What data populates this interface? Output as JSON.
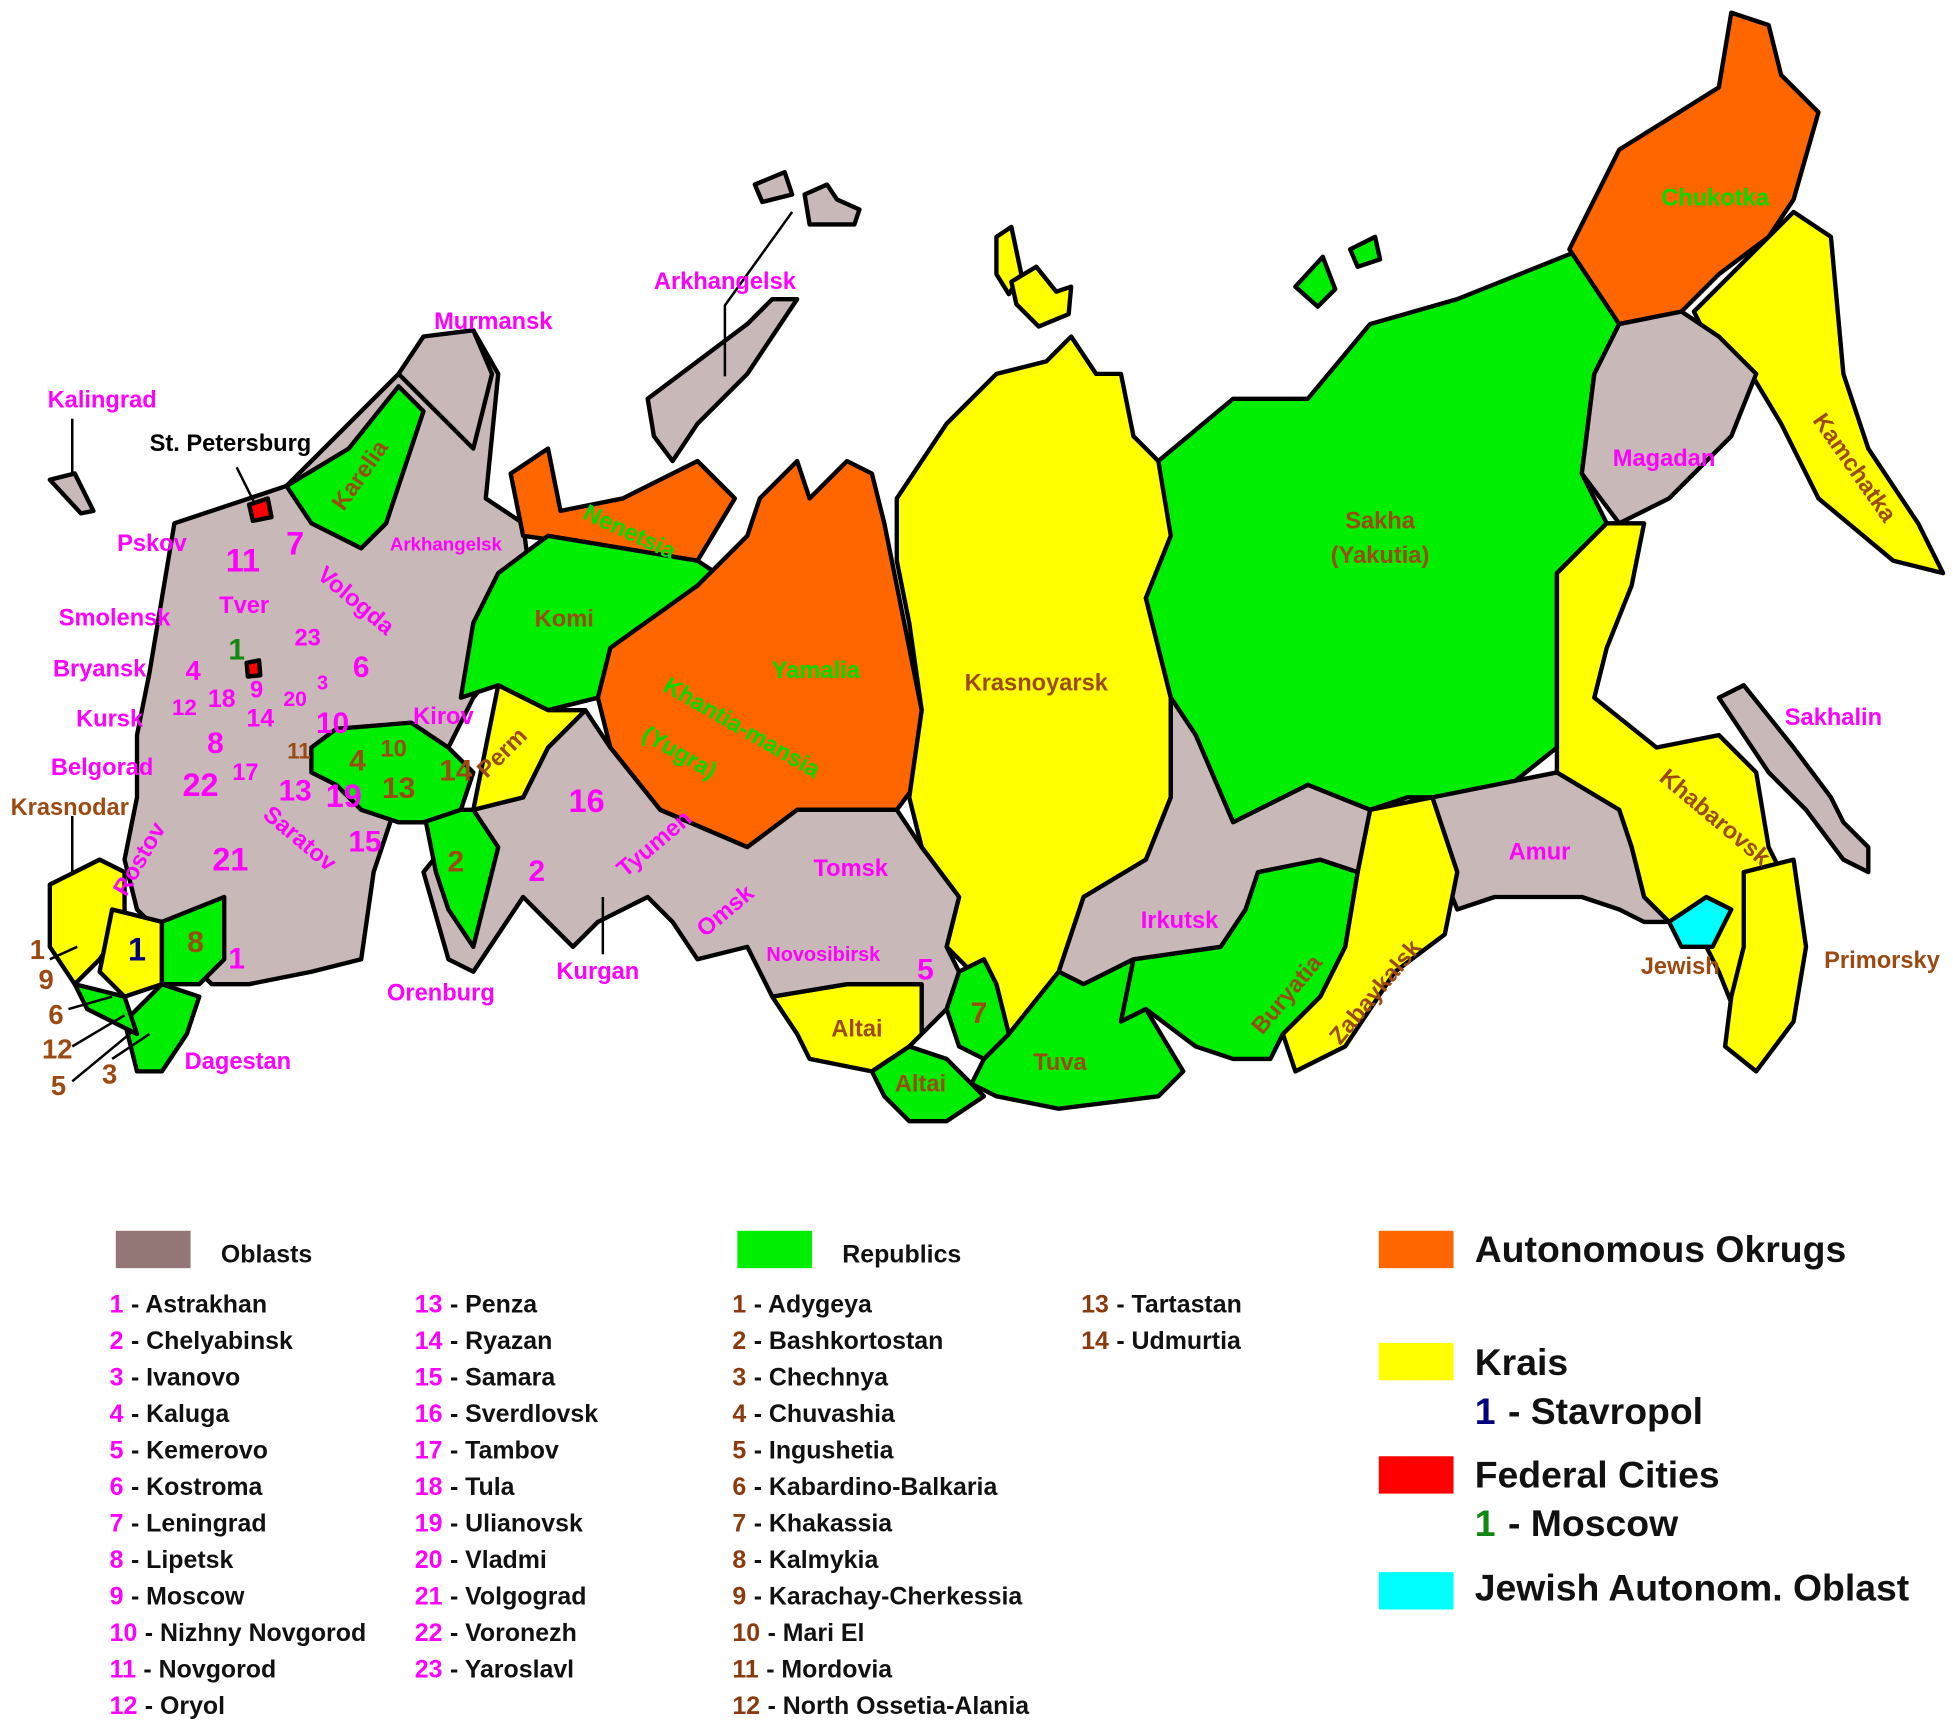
{
  "map_labels": [
    "Arkhangelsk",
    "Murmansk",
    "Kalingrad",
    "St. Petersburg",
    "Karelia",
    "Arkhangelsk",
    "Nenetsia",
    "Komi",
    "Pskov",
    "11",
    "7",
    "Vologda",
    "Tver",
    "Smolensk",
    "23",
    "6",
    "1",
    "Bryansk",
    "4",
    "9",
    "3",
    "12",
    "18",
    "20",
    "14",
    "Kursk",
    "10",
    "Kirov",
    "Perm",
    "8",
    "11",
    "4",
    "10",
    "17",
    "Belgorad",
    "22",
    "13",
    "19",
    "13",
    "14",
    "16",
    "Saratov",
    "15",
    "21",
    "Rostov",
    "Krasnodar",
    "2",
    "2",
    "Tyumen",
    "Tomsk",
    "Omsk",
    "Kurgan",
    "Orenburg",
    "1",
    "8",
    "1",
    "1",
    "9",
    "6",
    "12",
    "5",
    "3",
    "Dagestan",
    "Novosibirsk",
    "5",
    "Altai",
    "7",
    "Altai",
    "Tuva",
    "Yamalia",
    "Khantia-mansia",
    "(Yugra)",
    "Krasnoyarsk",
    "Sakha",
    "(Yakutia)",
    "Irkutsk",
    "Buryatia",
    "Zabaykalsk",
    "Amur",
    "Jewish",
    "Primorsky",
    "Khabarovsk",
    "Sakhalin",
    "Magadan",
    "Kamchatka",
    "Chukotka"
  ],
  "legend": {
    "types": [
      {
        "label": "Oblasts",
        "color": "#937676"
      },
      {
        "label": "Republics",
        "color": "#00ee00"
      },
      {
        "label": "Autonomous Okrugs",
        "color": "#ff6600"
      },
      {
        "label": "Krais",
        "color": "#ffff00",
        "entry": {
          "number": "1",
          "text": "- Stavropol"
        }
      },
      {
        "label": "Federal Cities",
        "color": "#ff0000",
        "entry": {
          "number": "1",
          "text": "- Moscow"
        }
      },
      {
        "label": "Jewish Autonom. Oblast",
        "color": "#00ffff"
      }
    ],
    "oblasts": [
      {
        "number": "1",
        "text": "- Astrakhan"
      },
      {
        "number": "2",
        "text": "- Chelyabinsk"
      },
      {
        "number": "3",
        "text": "- Ivanovo"
      },
      {
        "number": "4",
        "text": "- Kaluga"
      },
      {
        "number": "5",
        "text": "- Kemerovo"
      },
      {
        "number": "6",
        "text": "- Kostroma"
      },
      {
        "number": "7",
        "text": "- Leningrad"
      },
      {
        "number": "8",
        "text": "- Lipetsk"
      },
      {
        "number": "9",
        "text": "- Moscow"
      },
      {
        "number": "10",
        "text": "- Nizhny Novgorod"
      },
      {
        "number": "11",
        "text": "- Novgorod"
      },
      {
        "number": "12",
        "text": "- Oryol"
      },
      {
        "number": "13",
        "text": "- Penza"
      },
      {
        "number": "14",
        "text": "- Ryazan"
      },
      {
        "number": "15",
        "text": "- Samara"
      },
      {
        "number": "16",
        "text": "- Sverdlovsk"
      },
      {
        "number": "17",
        "text": "- Tambov"
      },
      {
        "number": "18",
        "text": "- Tula"
      },
      {
        "number": "19",
        "text": "- Ulianovsk"
      },
      {
        "number": "20",
        "text": "- Vladmi"
      },
      {
        "number": "21",
        "text": "- Volgograd"
      },
      {
        "number": "22",
        "text": "- Voronezh"
      },
      {
        "number": "23",
        "text": "- Yaroslavl"
      }
    ],
    "republics": [
      {
        "number": "1",
        "text": "- Adygeya"
      },
      {
        "number": "2",
        "text": "- Bashkortostan"
      },
      {
        "number": "3",
        "text": "- Chechnya"
      },
      {
        "number": "4",
        "text": "- Chuvashia"
      },
      {
        "number": "5",
        "text": "- Ingushetia"
      },
      {
        "number": "6",
        "text": "- Kabardino-Balkaria"
      },
      {
        "number": "7",
        "text": "- Khakassia"
      },
      {
        "number": "8",
        "text": "- Kalmykia"
      },
      {
        "number": "9",
        "text": "- Karachay-Cherkessia"
      },
      {
        "number": "10",
        "text": "- Mari El"
      },
      {
        "number": "11",
        "text": "- Mordovia"
      },
      {
        "number": "12",
        "text": "- North Ossetia-Alania"
      },
      {
        "number": "13",
        "text": "- Tartastan"
      },
      {
        "number": "14",
        "text": "- Udmurtia"
      }
    ]
  }
}
